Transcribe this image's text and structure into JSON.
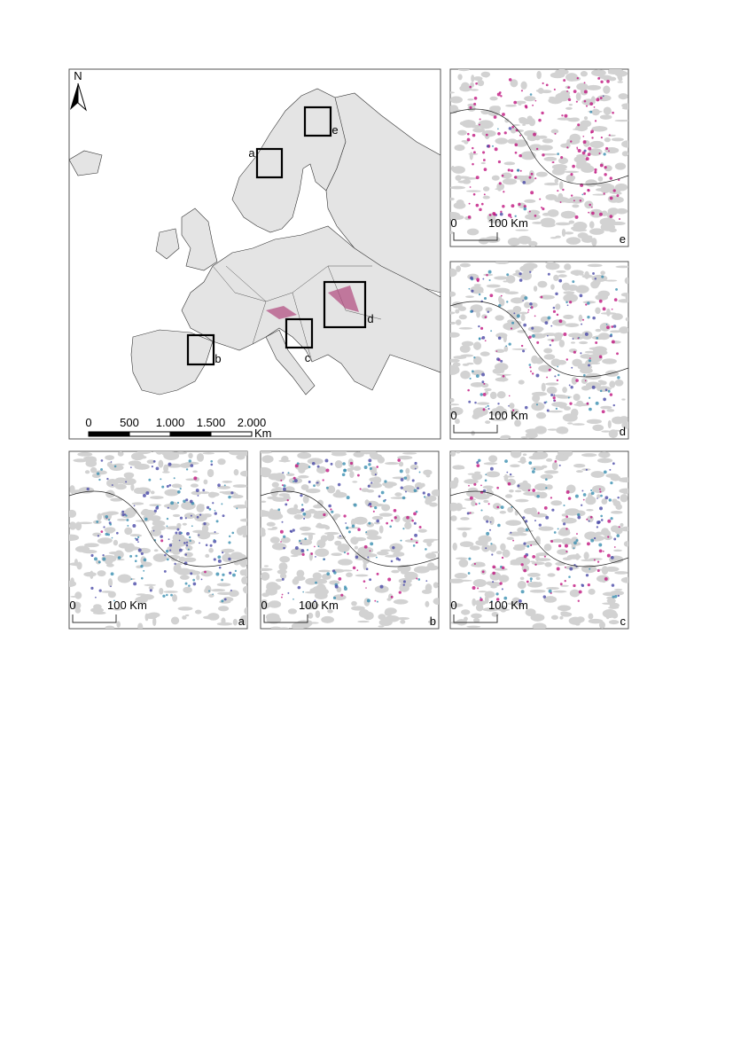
{
  "main_map": {
    "north_arrow": "N",
    "scale_bar": {
      "ticks": [
        "0",
        "500",
        "1.000",
        "1.500",
        "2.000"
      ],
      "unit": "Km"
    },
    "box_labels": [
      "a",
      "b",
      "c",
      "d",
      "e"
    ]
  },
  "insets": [
    {
      "label": "e",
      "scale_zero": "0",
      "scale_text": "100 Km"
    },
    {
      "label": "d",
      "scale_zero": "0",
      "scale_text": "100 Km"
    },
    {
      "label": "a",
      "scale_zero": "0",
      "scale_text": "100 Km"
    },
    {
      "label": "b",
      "scale_zero": "0",
      "scale_text": "100 Km"
    },
    {
      "label": "c",
      "scale_zero": "0",
      "scale_text": "100 Km"
    }
  ]
}
